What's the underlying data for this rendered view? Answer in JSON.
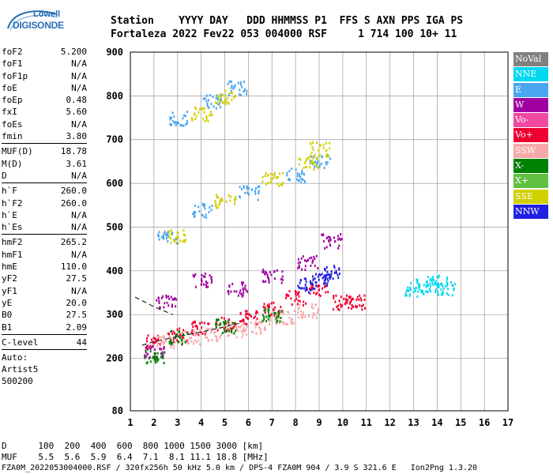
{
  "header": {
    "line1": "Station    YYYY DAY   DDD HHMMSS P1  FFS S AXN PPS IGA PS",
    "line2": "Fortaleza 2022 Fev22 053 004000 RSF     1 714 100 10+ 11"
  },
  "logo": {
    "line1": "Lowell",
    "line2": "DIGISONDE"
  },
  "params": {
    "group1": [
      {
        "name": "foF2",
        "value": "5.200"
      },
      {
        "name": "foF1",
        "value": "N/A"
      },
      {
        "name": "foF1p",
        "value": "N/A"
      },
      {
        "name": "foE",
        "value": "N/A"
      },
      {
        "name": "foEp",
        "value": "0.48"
      },
      {
        "name": "fxI",
        "value": "5.60"
      },
      {
        "name": "foEs",
        "value": "N/A"
      },
      {
        "name": "fmin",
        "value": "3.80"
      }
    ],
    "group2": [
      {
        "name": "MUF(D)",
        "value": "18.78"
      },
      {
        "name": "M(D)",
        "value": "3.61"
      },
      {
        "name": "D",
        "value": "N/A"
      }
    ],
    "group3": [
      {
        "name": "h`F",
        "value": "260.0"
      },
      {
        "name": "h`F2",
        "value": "260.0"
      },
      {
        "name": "h`E",
        "value": "N/A"
      },
      {
        "name": "h`Es",
        "value": "N/A"
      }
    ],
    "group4": [
      {
        "name": "hmF2",
        "value": "265.2"
      },
      {
        "name": "hmF1",
        "value": "N/A"
      },
      {
        "name": "hmE",
        "value": "110.0"
      },
      {
        "name": "yF2",
        "value": "27.5"
      },
      {
        "name": "yF1",
        "value": "N/A"
      },
      {
        "name": "yE",
        "value": "20.0"
      },
      {
        "name": "B0",
        "value": "27.5"
      },
      {
        "name": "B1",
        "value": "2.09"
      }
    ],
    "clevel": {
      "name": "C-level",
      "value": "44"
    },
    "auto": [
      "Auto:",
      "Artist5",
      "500200"
    ]
  },
  "legend": [
    {
      "label": "NoVal",
      "color": "#808080"
    },
    {
      "label": "NNE",
      "color": "#00d8f0"
    },
    {
      "label": "E",
      "color": "#4aa6f0"
    },
    {
      "label": "W",
      "color": "#a000a0"
    },
    {
      "label": "Vo-",
      "color": "#f04aa0"
    },
    {
      "label": "Vo+",
      "color": "#f00030"
    },
    {
      "label": "SSW",
      "color": "#f8a8a8"
    },
    {
      "label": "X-",
      "color": "#008000"
    },
    {
      "label": "X+",
      "color": "#60c040"
    },
    {
      "label": "SSE",
      "color": "#d0d000"
    },
    {
      "label": "NNW",
      "color": "#2020e0"
    }
  ],
  "chart_data": {
    "type": "scatter",
    "title": "",
    "xlabel": "",
    "ylabel": "",
    "xlim": [
      1,
      17
    ],
    "ylim": [
      80,
      900
    ],
    "x_ticks": [
      "1",
      "2",
      "3",
      "4",
      "5",
      "6",
      "7",
      "8",
      "9",
      "10",
      "11",
      "12",
      "13",
      "14",
      "15",
      "16",
      "17"
    ],
    "y_ticks": [
      "80",
      "200",
      "300",
      "400",
      "500",
      "600",
      "700",
      "800",
      "900"
    ],
    "grid": true,
    "legend_position": "right",
    "series": [
      {
        "name": "Vo+",
        "values": [
          [
            2.0,
            240
          ],
          [
            3.0,
            255
          ],
          [
            4.0,
            270
          ],
          [
            5.0,
            280
          ],
          [
            6.0,
            295
          ],
          [
            7.0,
            315
          ],
          [
            8.0,
            340
          ],
          [
            9.0,
            360
          ],
          [
            10.0,
            330
          ],
          [
            10.5,
            330
          ]
        ]
      },
      {
        "name": "SSW",
        "values": [
          [
            2.5,
            240
          ],
          [
            3.5,
            250
          ],
          [
            4.5,
            258
          ],
          [
            5.5,
            265
          ],
          [
            6.5,
            275
          ],
          [
            7.5,
            295
          ],
          [
            8.5,
            310
          ]
        ]
      },
      {
        "name": "W",
        "values": [
          [
            2.0,
            215
          ],
          [
            2.5,
            330
          ],
          [
            4.0,
            380
          ],
          [
            5.5,
            360
          ],
          [
            7.0,
            390
          ],
          [
            8.5,
            420
          ],
          [
            9.5,
            470
          ]
        ]
      },
      {
        "name": "E",
        "values": [
          [
            2.5,
            480
          ],
          [
            4.0,
            540
          ],
          [
            6.0,
            580
          ],
          [
            8.0,
            620
          ],
          [
            9.0,
            650
          ],
          [
            3.0,
            750
          ],
          [
            4.5,
            790
          ],
          [
            5.5,
            820
          ]
        ]
      },
      {
        "name": "SSE",
        "values": [
          [
            3.0,
            480
          ],
          [
            5.0,
            560
          ],
          [
            7.0,
            610
          ],
          [
            8.5,
            650
          ],
          [
            9.0,
            680
          ],
          [
            4.0,
            760
          ],
          [
            5.0,
            800
          ]
        ]
      },
      {
        "name": "NNE",
        "values": [
          [
            13.0,
            360
          ],
          [
            13.5,
            370
          ],
          [
            14.0,
            375
          ],
          [
            14.3,
            362
          ]
        ]
      },
      {
        "name": "X-",
        "values": [
          [
            2.0,
            205
          ],
          [
            3.0,
            250
          ],
          [
            5.0,
            275
          ],
          [
            7.0,
            300
          ]
        ]
      },
      {
        "name": "NNW",
        "values": [
          [
            8.5,
            370
          ],
          [
            9.0,
            380
          ],
          [
            9.5,
            400
          ]
        ]
      }
    ],
    "profile_line": [
      [
        1.5,
        230
      ],
      [
        2.0,
        238
      ],
      [
        3.0,
        250
      ],
      [
        4.0,
        260
      ],
      [
        5.0,
        272
      ],
      [
        5.6,
        280
      ]
    ]
  },
  "footer": {
    "line1": "D      100  200  400  600  800 1000 1500 3000 [km]",
    "line2": "MUF    5.5  5.6  5.9  6.4  7.1  8.1 11.1 18.8 [MHz]",
    "line3": "FZA0M_2022053004000.RSF / 320fx256h 50 kHz 5.0 km / DPS-4 FZA0M 904 / 3.9 S 321.6 E   Ion2Png 1.3.20"
  }
}
